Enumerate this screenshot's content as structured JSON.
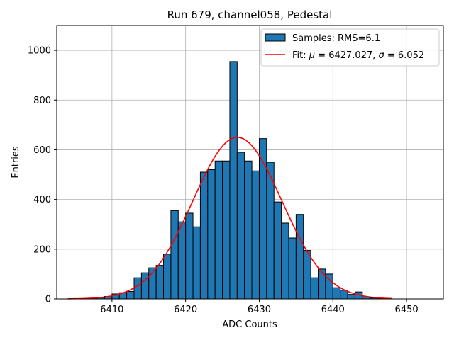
{
  "chart_data": {
    "type": "bar",
    "title": "Run 679, channel058, Pedestal",
    "xlabel": "ADC Counts",
    "ylabel": "Entries",
    "xlim": [
      6402.5,
      6455
    ],
    "ylim": [
      0,
      1100
    ],
    "grid": true,
    "legend_position": "top-right",
    "xticks": [
      6410,
      6420,
      6430,
      6440,
      6450
    ],
    "yticks": [
      0,
      200,
      400,
      600,
      800,
      1000
    ],
    "histogram": {
      "name": "Samples: RMS=6.1",
      "color": "#1f77b4",
      "bin_width": 1,
      "bins": [
        [
          6407,
          3
        ],
        [
          6408,
          5
        ],
        [
          6409,
          10
        ],
        [
          6410,
          20
        ],
        [
          6411,
          25
        ],
        [
          6412,
          30
        ],
        [
          6413,
          85
        ],
        [
          6414,
          105
        ],
        [
          6415,
          125
        ],
        [
          6416,
          135
        ],
        [
          6417,
          180
        ],
        [
          6418,
          355
        ],
        [
          6419,
          310
        ],
        [
          6420,
          345
        ],
        [
          6421,
          290
        ],
        [
          6422,
          510
        ],
        [
          6423,
          520
        ],
        [
          6424,
          555
        ],
        [
          6425,
          555
        ],
        [
          6426,
          955
        ],
        [
          6427,
          590
        ],
        [
          6428,
          555
        ],
        [
          6429,
          515
        ],
        [
          6430,
          645
        ],
        [
          6431,
          550
        ],
        [
          6432,
          390
        ],
        [
          6433,
          305
        ],
        [
          6434,
          245
        ],
        [
          6435,
          340
        ],
        [
          6436,
          195
        ],
        [
          6437,
          85
        ],
        [
          6438,
          120
        ],
        [
          6439,
          100
        ],
        [
          6440,
          45
        ],
        [
          6441,
          35
        ],
        [
          6442,
          18
        ],
        [
          6443,
          28
        ],
        [
          6444,
          8
        ],
        [
          6445,
          4
        ],
        [
          6446,
          2
        ]
      ]
    },
    "fit": {
      "name": "Fit: μ = 6427.027, σ = 6.052",
      "color": "#ff0000",
      "mu": 6427.027,
      "sigma": 6.052,
      "amplitude": 650,
      "x_range": [
        6404,
        6448
      ]
    }
  },
  "legend": {
    "hist_prefix": "Samples: RMS=6.1",
    "fit_prefix": "Fit: ",
    "fit_mu_symbol": "μ",
    "fit_mu_value": " = 6427.027, ",
    "fit_sigma_symbol": "σ",
    "fit_sigma_value": " = 6.052"
  }
}
